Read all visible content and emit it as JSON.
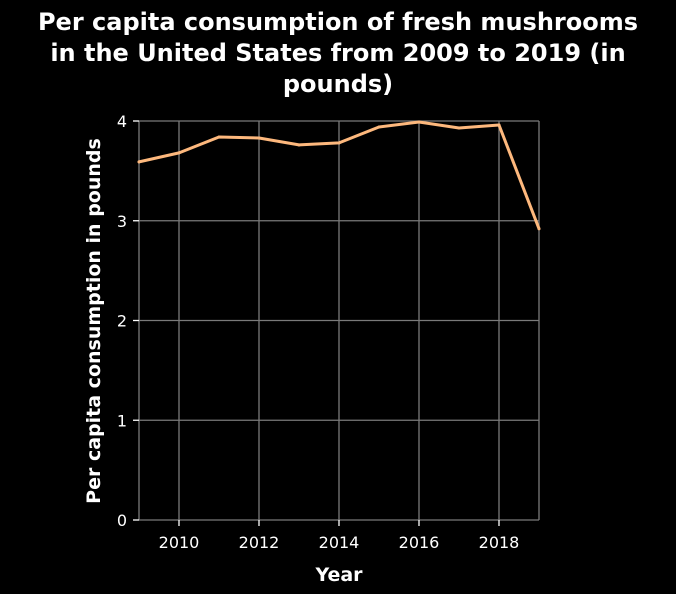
{
  "chart_data": {
    "type": "line",
    "title_lines": [
      "Per capita consumption of fresh mushrooms",
      "in the United States from 2009 to 2019 (in",
      "pounds)"
    ],
    "xlabel": "Year",
    "ylabel": "Per capita consumption in pounds",
    "xlim": [
      2009,
      2019
    ],
    "ylim": [
      0,
      4
    ],
    "x_ticks": [
      2010,
      2012,
      2014,
      2016,
      2018
    ],
    "y_ticks": [
      0,
      1,
      2,
      3,
      4
    ],
    "grid": true,
    "series": [
      {
        "x": [
          2009,
          2010,
          2011,
          2012,
          2013,
          2014,
          2015,
          2016,
          2017,
          2018,
          2019
        ],
        "values": [
          3.59,
          3.68,
          3.84,
          3.83,
          3.76,
          3.78,
          3.94,
          3.99,
          3.93,
          3.96,
          2.92
        ],
        "color": "#fdb87d"
      }
    ],
    "background": "#000000",
    "text_color": "#ffffff",
    "grid_color": "#7a7a7a"
  }
}
